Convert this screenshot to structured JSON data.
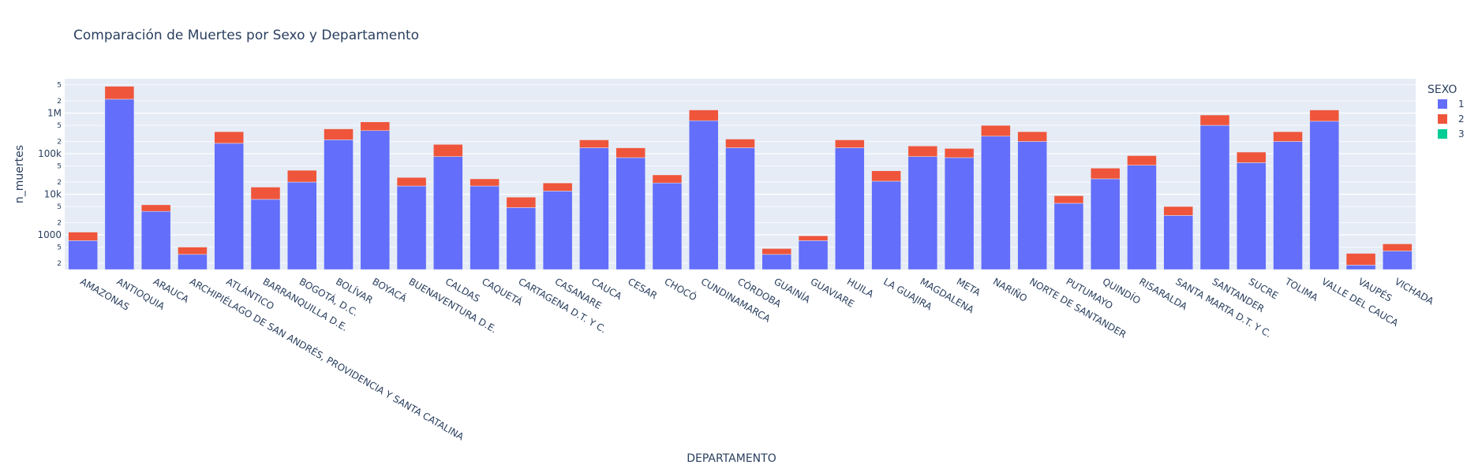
{
  "chart_data": {
    "type": "bar",
    "barmode": "stack",
    "title": "Comparación de Muertes por Sexo y Departamento",
    "xlabel": "DEPARTAMENTO",
    "ylabel": "n_muertes",
    "yscale": "log",
    "ylim": [
      140,
      7000000
    ],
    "grid": true,
    "legend": {
      "title": "SEXO",
      "placement": "top-right"
    },
    "y_tick_labels": {
      "major": [
        "1000",
        "10k",
        "100k",
        "1M"
      ],
      "minor": [
        "2",
        "5",
        "2",
        "5",
        "2",
        "5",
        "2",
        "5",
        "2",
        "5"
      ]
    },
    "categories": [
      "AMAZONAS",
      "ANTIOQUIA",
      "ARAUCA",
      "ARCHIPIÉLAGO DE SAN ANDRÉS, PROVIDENCIA Y SANTA CATALINA",
      "ATLÁNTICO",
      "BARRANQUILLA D.E.",
      "BOGOTÁ, D.C.",
      "BOLÍVAR",
      "BOYACÁ",
      "BUENAVENTURA D.E.",
      "CALDAS",
      "CAQUETÁ",
      "CARTAGENA D.T. Y C.",
      "CASANARE",
      "CAUCA",
      "CESAR",
      "CHOCÓ",
      "CUNDINAMARCA",
      "CÓRDOBA",
      "GUAINÍA",
      "GUAVIARE",
      "HUILA",
      "LA GUAJIRA",
      "MAGDALENA",
      "META",
      "NARIÑO",
      "NORTE DE SANTANDER",
      "PUTUMAYO",
      "QUINDÍO",
      "RISARALDA",
      "SANTA MARTA D.T. Y C.",
      "SANTANDER",
      "SUCRE",
      "TOLIMA",
      "VALLE DEL CAUCA",
      "VAUPÉS",
      "VICHADA"
    ],
    "series": [
      {
        "name": "1",
        "color": "#636efa",
        "values": [
          720,
          2200000,
          3800,
          330,
          180000,
          7500,
          20000,
          220000,
          370000,
          16000,
          85000,
          16000,
          4700,
          12000,
          140000,
          80000,
          19000,
          650000,
          140000,
          330,
          720,
          140000,
          21000,
          85000,
          80000,
          270000,
          200000,
          6000,
          24000,
          52000,
          3000,
          500000,
          60000,
          200000,
          630000,
          180,
          400
        ]
      },
      {
        "name": "2",
        "color": "#ef553b",
        "values": [
          450,
          2400000,
          1700,
          170,
          170000,
          7500,
          19000,
          190000,
          240000,
          10000,
          85000,
          8000,
          3800,
          7000,
          80000,
          60000,
          11000,
          550000,
          90000,
          130,
          230,
          80000,
          17000,
          70000,
          55000,
          230000,
          150000,
          3200,
          20000,
          38000,
          2000,
          400000,
          50000,
          150000,
          570000,
          170,
          200
        ]
      },
      {
        "name": "3",
        "color": "#00cc96",
        "values": [
          0,
          10,
          0,
          0,
          5,
          0,
          0,
          5,
          5,
          0,
          2,
          0,
          0,
          0,
          3,
          2,
          0,
          8,
          3,
          0,
          0,
          3,
          0,
          2,
          2,
          5,
          5,
          0,
          0,
          2,
          0,
          6,
          2,
          4,
          8,
          0,
          0
        ]
      }
    ]
  }
}
